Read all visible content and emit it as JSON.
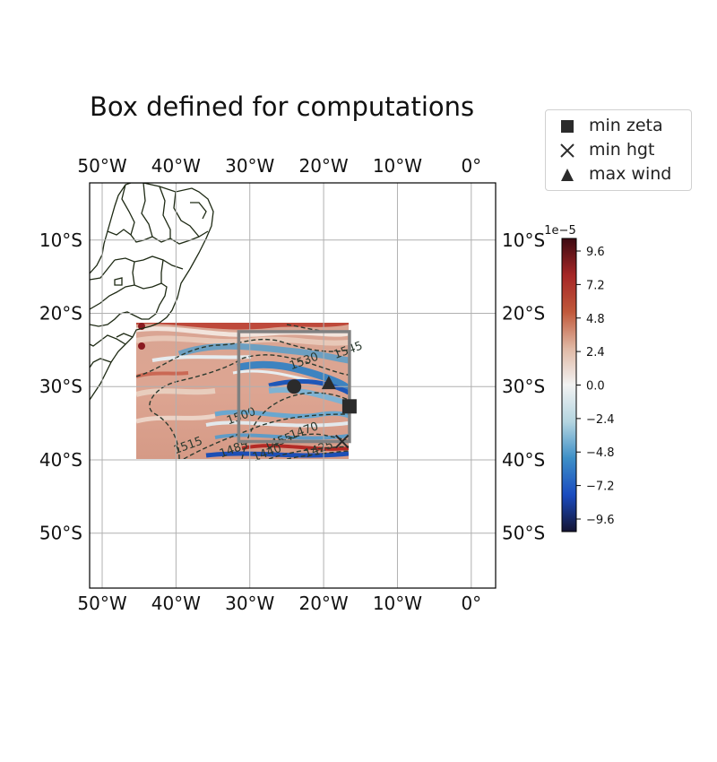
{
  "title": "Box defined for computations",
  "legend": [
    {
      "label": "min zeta",
      "marker": "square-icon"
    },
    {
      "label": "min hgt",
      "marker": "x-icon"
    },
    {
      "label": "max wind",
      "marker": "triangle-icon"
    }
  ],
  "map": {
    "lon_ticks": [
      "50°W",
      "40°W",
      "30°W",
      "20°W",
      "10°W",
      "0°"
    ],
    "lon_values": [
      -50,
      -40,
      -30,
      -20,
      -10,
      0
    ],
    "lat_ticks": [
      "10°S",
      "20°S",
      "30°S",
      "40°S",
      "50°S"
    ],
    "lat_values": [
      -10,
      -20,
      -30,
      -40,
      -50
    ],
    "extent": {
      "lon": [
        -51.7,
        3.3
      ],
      "lat": [
        -57.5,
        -2.2
      ]
    },
    "data_region": {
      "lon": [
        -45.5,
        -16.5
      ],
      "lat": [
        -40,
        -21.5
      ]
    },
    "computation_box": {
      "lon": [
        -31.5,
        -16.5
      ],
      "lat": [
        -37.5,
        -22.5
      ]
    },
    "markers": {
      "center": {
        "lon": -24,
        "lat": -30
      },
      "min_zeta": {
        "lon": -16.5,
        "lat": -32.7
      },
      "min_hgt": {
        "lon": -17.5,
        "lat": -37.5
      },
      "max_wind": {
        "lon": -19.3,
        "lat": -29.5
      }
    },
    "contour_labels": [
      {
        "text": "1545",
        "lon": -16.5,
        "lat": -25.5
      },
      {
        "text": "1530",
        "lon": -22.5,
        "lat": -27
      },
      {
        "text": "1515",
        "lon": -38.2,
        "lat": -38.5
      },
      {
        "text": "1500",
        "lon": -31,
        "lat": -34.5
      },
      {
        "text": "1485",
        "lon": -32,
        "lat": -39
      },
      {
        "text": "1455",
        "lon": -26,
        "lat": -38
      },
      {
        "text": "1470",
        "lon": -22.5,
        "lat": -36.5
      },
      {
        "text": "1440",
        "lon": -27.5,
        "lat": -39.5
      },
      {
        "text": "1425",
        "lon": -20.5,
        "lat": -39
      }
    ]
  },
  "colorbar": {
    "exponent": "1e−5",
    "ticks": [
      "9.6",
      "7.2",
      "4.8",
      "2.4",
      "0.0",
      "−2.4",
      "−4.8",
      "−7.2",
      "−9.6"
    ],
    "tick_values": [
      9.6,
      7.2,
      4.8,
      2.4,
      0.0,
      -2.4,
      -4.8,
      -7.2,
      -9.6
    ],
    "range": [
      -10.5,
      10.5
    ],
    "colors": [
      "#141433",
      "#1a4bbf",
      "#3d8fc7",
      "#b4d5e0",
      "#f2f2f2",
      "#e0b8a4",
      "#c0583a",
      "#a52626",
      "#3d0a12"
    ]
  }
}
